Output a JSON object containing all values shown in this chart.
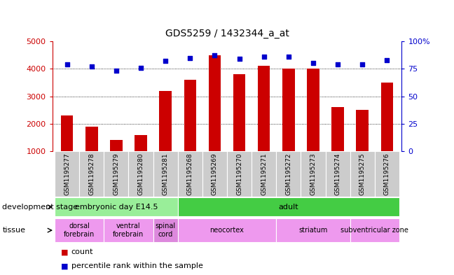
{
  "title": "GDS5259 / 1432344_a_at",
  "samples": [
    "GSM1195277",
    "GSM1195278",
    "GSM1195279",
    "GSM1195280",
    "GSM1195281",
    "GSM1195268",
    "GSM1195269",
    "GSM1195270",
    "GSM1195271",
    "GSM1195272",
    "GSM1195273",
    "GSM1195274",
    "GSM1195275",
    "GSM1195276"
  ],
  "counts": [
    2300,
    1900,
    1400,
    1600,
    3200,
    3600,
    4500,
    3800,
    4100,
    4000,
    4000,
    2600,
    2500,
    3500
  ],
  "percentiles": [
    79,
    77,
    73,
    76,
    82,
    85,
    87,
    84,
    86,
    86,
    80,
    79,
    79,
    83
  ],
  "ylim_left": [
    1000,
    5000
  ],
  "ylim_right": [
    0,
    100
  ],
  "yticks_left": [
    1000,
    2000,
    3000,
    4000,
    5000
  ],
  "yticks_right": [
    0,
    25,
    50,
    75,
    100
  ],
  "bar_color": "#cc0000",
  "dot_color": "#0000cc",
  "grid_color": "#888888",
  "background_color": "#ffffff",
  "dev_stage_groups": [
    {
      "label": "embryonic day E14.5",
      "start": 0,
      "end": 5,
      "color": "#99ee99"
    },
    {
      "label": "adult",
      "start": 5,
      "end": 14,
      "color": "#44cc44"
    }
  ],
  "tissue_groups": [
    {
      "label": "dorsal\nforebrain",
      "start": 0,
      "end": 2,
      "color": "#ee99ee"
    },
    {
      "label": "ventral\nforebrain",
      "start": 2,
      "end": 4,
      "color": "#ee99ee"
    },
    {
      "label": "spinal\ncord",
      "start": 4,
      "end": 5,
      "color": "#dd88dd"
    },
    {
      "label": "neocortex",
      "start": 5,
      "end": 9,
      "color": "#ee99ee"
    },
    {
      "label": "striatum",
      "start": 9,
      "end": 12,
      "color": "#ee99ee"
    },
    {
      "label": "subventricular zone",
      "start": 12,
      "end": 14,
      "color": "#ee99ee"
    }
  ],
  "legend_count_color": "#cc0000",
  "legend_pct_color": "#0000cc",
  "dev_stage_label": "development stage",
  "tissue_label": "tissue",
  "legend_count_text": "count",
  "legend_pct_text": "percentile rank within the sample",
  "gray_tick_color": "#cccccc",
  "bar_width": 0.5
}
